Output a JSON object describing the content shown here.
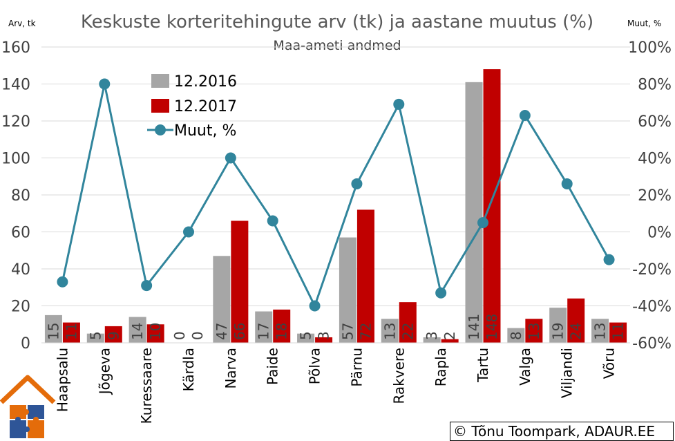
{
  "chart_data": {
    "type": "bar",
    "title": "Keskuste korteritehingute arv (tk) ja aastane muutus (%)",
    "subtitle": "Maa-ameti andmed",
    "ylabel": "Arv, tk",
    "y2label": "Muut, %",
    "ylim": [
      0,
      160
    ],
    "y2lim": [
      -60,
      100
    ],
    "yticks": [
      "0",
      "20",
      "40",
      "60",
      "80",
      "100",
      "120",
      "140",
      "160"
    ],
    "y2ticks": [
      "-60%",
      "-40%",
      "-20%",
      "0%",
      "20%",
      "40%",
      "60%",
      "80%",
      "100%"
    ],
    "legend_position": "top-left",
    "categories": [
      "Haapsalu",
      "Jõgeva",
      "Kuressaare",
      "Kärdla",
      "Narva",
      "Paide",
      "Põlva",
      "Pärnu",
      "Rakvere",
      "Rapla",
      "Tartu",
      "Valga",
      "Viljandi",
      "Võru"
    ],
    "series": [
      {
        "name": "12.2016",
        "type": "bar",
        "color": "#A6A6A6",
        "values": [
          15,
          5,
          14,
          0,
          47,
          17,
          5,
          57,
          13,
          3,
          141,
          8,
          19,
          13
        ],
        "labels": [
          "15",
          "5",
          "14",
          "0",
          "47",
          "17",
          "5",
          "57",
          "13",
          "3",
          "141",
          "8",
          "19",
          "13"
        ]
      },
      {
        "name": "12.2017",
        "type": "bar",
        "color": "#C00000",
        "values": [
          11,
          9,
          10,
          0,
          66,
          18,
          3,
          72,
          22,
          2,
          148,
          13,
          24,
          11
        ],
        "labels": [
          "11",
          "9",
          "10",
          "0",
          "66",
          "18",
          "3",
          "72",
          "22",
          "2",
          "148",
          "13",
          "24",
          "11"
        ]
      },
      {
        "name": "Muut, %",
        "type": "line",
        "axis": "right",
        "color": "#31859C",
        "values": [
          -27,
          80,
          -29,
          0,
          40,
          6,
          -40,
          26,
          69,
          -33,
          5,
          63,
          26,
          -15
        ]
      }
    ]
  },
  "credit": "© Tõnu Toompark, ADAUR.EE",
  "logo": "house-puzzle-logo"
}
